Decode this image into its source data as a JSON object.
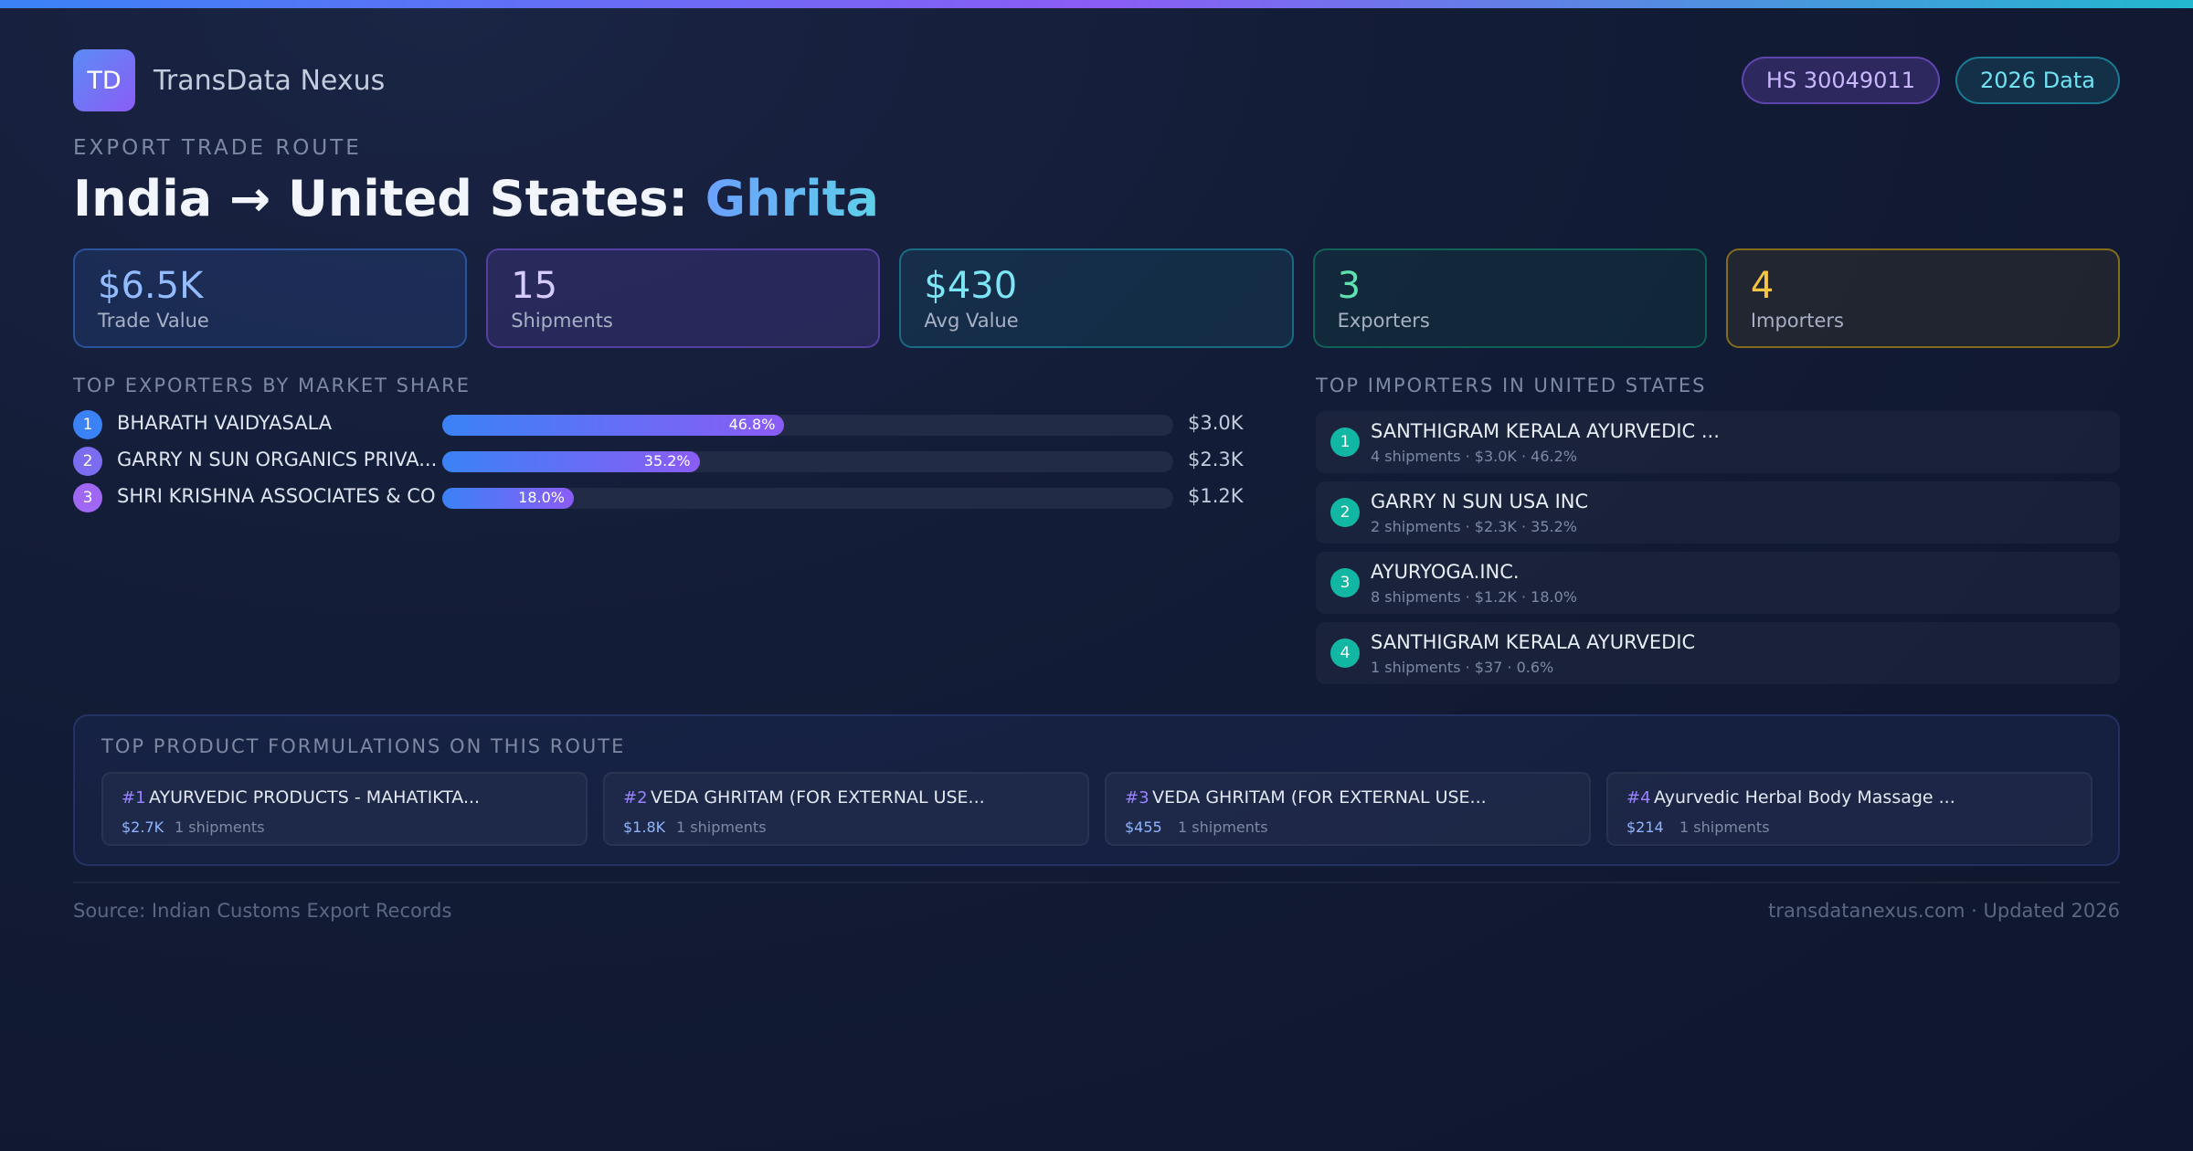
{
  "header": {
    "logo_text": "TD",
    "brand": "TransData Nexus",
    "badges": {
      "hs": "HS 30049011",
      "year": "2026 Data"
    }
  },
  "route": {
    "eyebrow": "EXPORT TRADE ROUTE",
    "title_prefix": "India → United States: ",
    "title_product": "Ghrita"
  },
  "stats": [
    {
      "value": "$6.5K",
      "label": "Trade Value"
    },
    {
      "value": "15",
      "label": "Shipments"
    },
    {
      "value": "$430",
      "label": "Avg Value"
    },
    {
      "value": "3",
      "label": "Exporters"
    },
    {
      "value": "4",
      "label": "Importers"
    }
  ],
  "exporters": {
    "title": "TOP EXPORTERS BY MARKET SHARE",
    "items": [
      {
        "rank": "1",
        "name": "BHARATH VAIDYASALA",
        "share": 46.8,
        "share_label": "46.8%",
        "value": "$3.0K"
      },
      {
        "rank": "2",
        "name": "GARRY N SUN ORGANICS PRIVA...",
        "share": 35.2,
        "share_label": "35.2%",
        "value": "$2.3K"
      },
      {
        "rank": "3",
        "name": "SHRI KRISHNA ASSOCIATES & CO",
        "share": 18.0,
        "share_label": "18.0%",
        "value": "$1.2K"
      }
    ]
  },
  "importers": {
    "title": "TOP IMPORTERS IN UNITED STATES",
    "items": [
      {
        "rank": "1",
        "name": "SANTHIGRAM KERALA AYURVEDIC ...",
        "meta": "4 shipments · $3.0K · 46.2%"
      },
      {
        "rank": "2",
        "name": "GARRY N SUN USA INC",
        "meta": "2 shipments · $2.3K · 35.2%"
      },
      {
        "rank": "3",
        "name": "AYURYOGA.INC.",
        "meta": "8 shipments · $1.2K · 18.0%"
      },
      {
        "rank": "4",
        "name": "SANTHIGRAM KERALA AYURVEDIC",
        "meta": "1 shipments · $37 · 0.6%"
      }
    ]
  },
  "products": {
    "title": "TOP PRODUCT FORMULATIONS ON THIS ROUTE",
    "items": [
      {
        "rank": "#1",
        "name": "AYURVEDIC PRODUCTS - MAHATIKTA...",
        "value": "$2.7K",
        "shipments": "1 shipments"
      },
      {
        "rank": "#2",
        "name": "VEDA GHRITAM (FOR EXTERNAL USE...",
        "value": "$1.8K",
        "shipments": "1 shipments"
      },
      {
        "rank": "#3",
        "name": "VEDA GHRITAM (FOR EXTERNAL USE...",
        "value": "$455",
        "shipments": "1 shipments"
      },
      {
        "rank": "#4",
        "name": "Ayurvedic Herbal Body Massage ...",
        "value": "$214",
        "shipments": "1 shipments"
      }
    ]
  },
  "footer": {
    "source": "Source: Indian Customs Export Records",
    "site": "transdatanexus.com · Updated 2026"
  },
  "colors": {
    "accent_blue": "#3b82f6",
    "accent_purple": "#8b5cf6",
    "accent_cyan": "#22b8cf",
    "accent_teal": "#12b7a4",
    "rank_colors": [
      "#3b82f6",
      "#7c6cf0",
      "#a067f5"
    ]
  }
}
